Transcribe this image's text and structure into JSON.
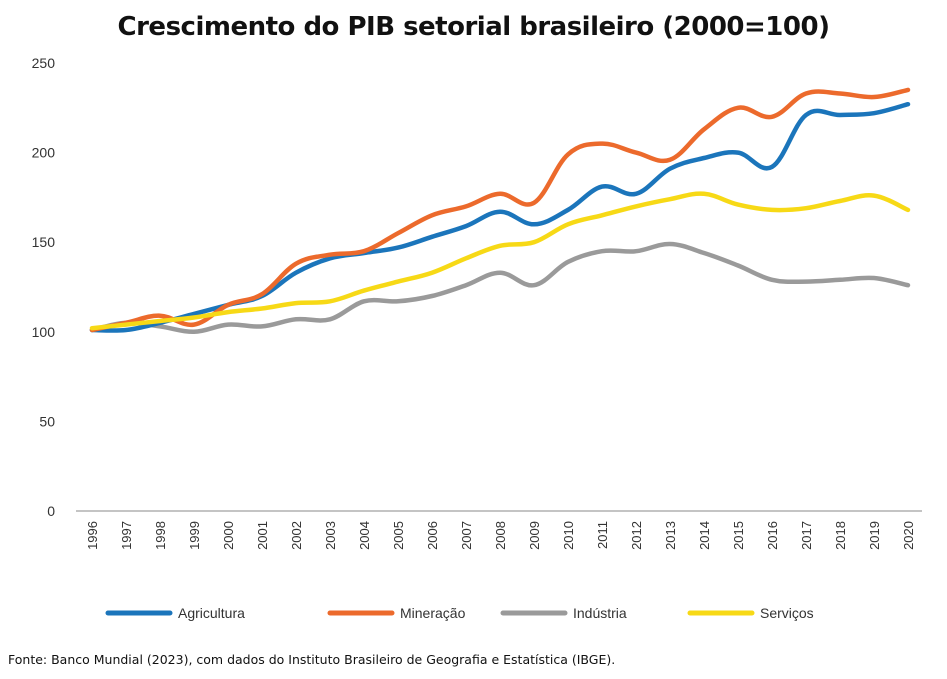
{
  "chart_data": {
    "type": "line",
    "title": "Crescimento do PIB setorial brasileiro (2000=100)",
    "xlabel": "",
    "ylabel": "",
    "ylim": [
      0,
      250
    ],
    "yticks": [
      0,
      50,
      100,
      150,
      200,
      250
    ],
    "x": [
      "1996",
      "1997",
      "1998",
      "1999",
      "2000",
      "2001",
      "2002",
      "2003",
      "2004",
      "2005",
      "2006",
      "2007",
      "2008",
      "2009",
      "2010",
      "2011",
      "2012",
      "2013",
      "2014",
      "2015",
      "2016",
      "2017",
      "2018",
      "2019",
      "2020"
    ],
    "grid": false,
    "legend_position": "bottom",
    "series": [
      {
        "name": "Agricultura",
        "color": "#1b75bb",
        "values": [
          101,
          101,
          105,
          110,
          115,
          120,
          133,
          141,
          144,
          147,
          153,
          159,
          167,
          160,
          168,
          181,
          177,
          191,
          197,
          200,
          192,
          221,
          221,
          222,
          227
        ]
      },
      {
        "name": "Mineração",
        "color": "#ec6a2c",
        "values": [
          101,
          105,
          109,
          104,
          115,
          121,
          138,
          143,
          145,
          155,
          165,
          170,
          177,
          172,
          199,
          205,
          200,
          196,
          213,
          225,
          220,
          233,
          233,
          231,
          235
        ]
      },
      {
        "name": "Indústria",
        "color": "#9a9a9a",
        "values": [
          101,
          105,
          103,
          100,
          104,
          103,
          107,
          107,
          117,
          117,
          120,
          126,
          133,
          126,
          139,
          145,
          145,
          149,
          144,
          137,
          129,
          128,
          129,
          130,
          126
        ]
      },
      {
        "name": "Serviços",
        "color": "#f7d916",
        "values": [
          102,
          104,
          106,
          108,
          111,
          113,
          116,
          117,
          123,
          128,
          133,
          141,
          148,
          150,
          160,
          165,
          170,
          174,
          177,
          171,
          168,
          169,
          173,
          176,
          168
        ]
      }
    ]
  },
  "source": "Fonte: Banco Mundial (2023), com dados do Instituto Brasileiro de Geografia e Estatística (IBGE)."
}
